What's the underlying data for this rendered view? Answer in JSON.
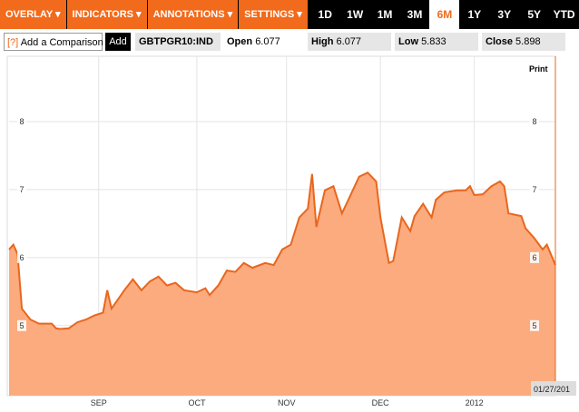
{
  "toolbar": {
    "menus": [
      "OVERLAY",
      "INDICATORS",
      "ANNOTATIONS",
      "SETTINGS"
    ],
    "ranges": [
      "1D",
      "1W",
      "1M",
      "3M",
      "6M",
      "1Y",
      "3Y",
      "5Y",
      "YTD"
    ],
    "selected_range": "6M"
  },
  "info_bar": {
    "help": "[?]",
    "comparison_placeholder": "Add a Comparison",
    "add_button": "Add",
    "ticker": "GBTPGR10:IND",
    "quotes": [
      {
        "label": "Open",
        "value": 6.077
      },
      {
        "label": "High",
        "value": 6.077
      },
      {
        "label": "Low",
        "value": 5.833
      },
      {
        "label": "Close",
        "value": 5.898
      }
    ]
  },
  "chart_data": {
    "type": "area",
    "print_label": "Print",
    "end_date_label": "01/27/201",
    "x": [
      0,
      1,
      2,
      3,
      5,
      7,
      10,
      11,
      12,
      14,
      16,
      18,
      20,
      22,
      23,
      24,
      27,
      29,
      31,
      33,
      35,
      37,
      39,
      41,
      44,
      46,
      47,
      49,
      51,
      53,
      55,
      57,
      60,
      62,
      64,
      66,
      68,
      70,
      71,
      72,
      74,
      76,
      78,
      80,
      82,
      84,
      86,
      87,
      89,
      90,
      92,
      94,
      95,
      97,
      99,
      100,
      102,
      105,
      107,
      108,
      109,
      111,
      113,
      115,
      116,
      117,
      120,
      121,
      123,
      125,
      126,
      128
    ],
    "values": [
      6.12,
      6.19,
      6.05,
      5.25,
      5.09,
      5.03,
      5.03,
      4.96,
      4.95,
      4.96,
      5.05,
      5.09,
      5.15,
      5.19,
      5.52,
      5.25,
      5.52,
      5.68,
      5.52,
      5.65,
      5.72,
      5.59,
      5.63,
      5.52,
      5.49,
      5.55,
      5.45,
      5.59,
      5.81,
      5.79,
      5.92,
      5.85,
      5.92,
      5.89,
      6.12,
      6.19,
      6.59,
      6.72,
      7.23,
      6.45,
      6.99,
      7.05,
      6.65,
      6.92,
      7.19,
      7.25,
      7.12,
      6.59,
      5.92,
      5.95,
      6.59,
      6.39,
      6.61,
      6.79,
      6.59,
      6.85,
      6.96,
      6.99,
      6.99,
      7.05,
      6.92,
      6.93,
      7.05,
      7.12,
      7.05,
      6.65,
      6.61,
      6.43,
      6.29,
      6.12,
      6.19,
      5.89
    ],
    "xlim": [
      0,
      128
    ],
    "ylim": [
      3.97,
      8.96
    ],
    "yticks": [
      5,
      6,
      7,
      8
    ],
    "xticks": [
      {
        "value": 21,
        "label": "SEP"
      },
      {
        "value": 44,
        "label": "OCT"
      },
      {
        "value": 65,
        "label": "NOV"
      },
      {
        "value": 87,
        "label": "DEC"
      },
      {
        "value": 109,
        "label": "2012"
      }
    ],
    "color": "#fbab7e",
    "line_color": "#e8661e",
    "grid": true
  }
}
